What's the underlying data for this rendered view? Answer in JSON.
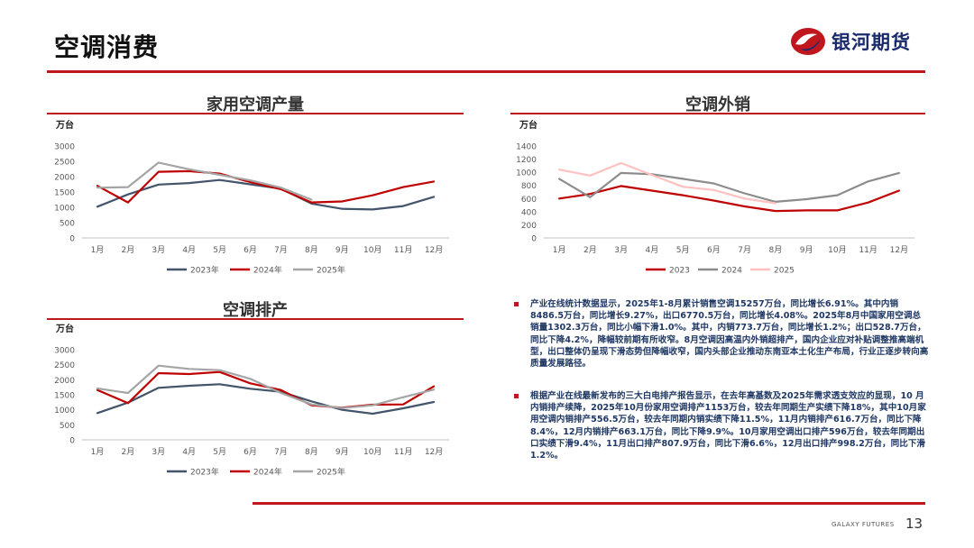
{
  "page": {
    "title": "空调消费",
    "brand_name": "银河期货",
    "footer_brand": "GALAXY FUTURES",
    "page_number": "13"
  },
  "colors": {
    "accent_red": "#c0161e",
    "series_dark": "#44546a",
    "series_red": "#c00000",
    "series_gray": "#a5a5a5",
    "series_pink": "#ffc0c0"
  },
  "chart_data": [
    {
      "type": "line",
      "title": "家用空调产量",
      "unit": "万台",
      "categories": [
        "1月",
        "2月",
        "3月",
        "4月",
        "5月",
        "6月",
        "7月",
        "8月",
        "9月",
        "10月",
        "11月",
        "12月"
      ],
      "ylim": [
        0,
        3000
      ],
      "yticks": [
        0,
        500,
        1000,
        1500,
        2000,
        2500,
        3000
      ],
      "legend_position": "bottom",
      "series": [
        {
          "name": "2023年",
          "color": "#44546a",
          "values": [
            1020,
            1420,
            1740,
            1790,
            1890,
            1750,
            1610,
            1120,
            950,
            930,
            1040,
            1340
          ]
        },
        {
          "name": "2024年",
          "color": "#c00000",
          "values": [
            1700,
            1160,
            2160,
            2180,
            2100,
            1820,
            1590,
            1160,
            1190,
            1390,
            1660,
            1840
          ]
        },
        {
          "name": "2025年",
          "color": "#a5a5a5",
          "values": [
            1640,
            1660,
            2460,
            2240,
            2060,
            1880,
            1640,
            1250,
            null,
            null,
            null,
            null
          ]
        }
      ]
    },
    {
      "type": "line",
      "title": "空调外销",
      "unit": "万台",
      "categories": [
        "1月",
        "2月",
        "3月",
        "4月",
        "5月",
        "6月",
        "7月",
        "8月",
        "9月",
        "10月",
        "11月",
        "12月"
      ],
      "ylim": [
        0,
        1400
      ],
      "yticks": [
        0,
        200,
        400,
        600,
        800,
        1000,
        1200,
        1400
      ],
      "legend_position": "bottom",
      "series": [
        {
          "name": "2023",
          "color": "#c00000",
          "values": [
            600,
            670,
            790,
            720,
            650,
            570,
            480,
            410,
            420,
            420,
            540,
            720
          ]
        },
        {
          "name": "2024",
          "color": "#8c8c8c",
          "values": [
            900,
            620,
            990,
            970,
            900,
            830,
            680,
            550,
            590,
            650,
            860,
            990
          ]
        },
        {
          "name": "2025",
          "color": "#ffc0c0",
          "values": [
            1040,
            950,
            1140,
            960,
            780,
            730,
            600,
            528,
            null,
            null,
            null,
            null
          ]
        }
      ]
    },
    {
      "type": "line",
      "title": "空调排产",
      "unit": "万台",
      "categories": [
        "1月",
        "2月",
        "3月",
        "4月",
        "5月",
        "6月",
        "7月",
        "8月",
        "9月",
        "10月",
        "11月",
        "12月"
      ],
      "ylim": [
        0,
        3000
      ],
      "yticks": [
        0,
        500,
        1000,
        1500,
        2000,
        2500,
        3000
      ],
      "legend_position": "bottom",
      "series": [
        {
          "name": "2023年",
          "color": "#44546a",
          "values": [
            890,
            1240,
            1730,
            1800,
            1850,
            1700,
            1600,
            1280,
            1000,
            870,
            1050,
            1260
          ]
        },
        {
          "name": "2024年",
          "color": "#c00000",
          "values": [
            1660,
            1220,
            2220,
            2190,
            2260,
            1880,
            1660,
            1150,
            1070,
            1170,
            1180,
            1780
          ]
        },
        {
          "name": "2025年",
          "color": "#a5a5a5",
          "values": [
            1710,
            1560,
            2470,
            2360,
            2320,
            2030,
            1560,
            1180,
            1060,
            1150,
            1420,
            1670
          ]
        }
      ]
    }
  ],
  "paragraphs": [
    "产业在线统计数据显示，2025年1-8月累计销售空调15257万台，同比增长6.91%。其中内销8486.5万台，同比增长9.27%，出口6770.5万台，同比增长4.08%。2025年8月中国家用空调总销量1302.3万台，同比小幅下滑1.0%。其中，内销773.7万台，同比增长1.2%；出口528.7万台，同比下降4.2%，降幅较前期有所收窄。8月空调因高温内外销超排产，国内企业应对补贴调整推高端机型，出口整体仍呈现下滑态势但降幅收窄，国内头部企业推动东南亚本土化生产布局，行业正逐步转向高质量发展路径。",
    "根据产业在线最新发布的三大白电排产报告显示，在去年高基数及2025年需求透支效应的显现，10 月内销排产续降，2025年10月份家用空调排产1153万台，较去年同期生产实绩下降18%，其中10月家用空调内销排产556.5万台，较去年同期内销实绩下降11.5%，11月内销排产616.7万台，同比下降8.4%，12月内销排产663.1万台，同比下降9.9%。10月家用空调出口排产596万台，较去年同期出口实绩下滑9.4%，11月出口排产807.9万台，同比下滑6.6%，12月出口排产998.2万台，同比下滑1.2%。"
  ]
}
